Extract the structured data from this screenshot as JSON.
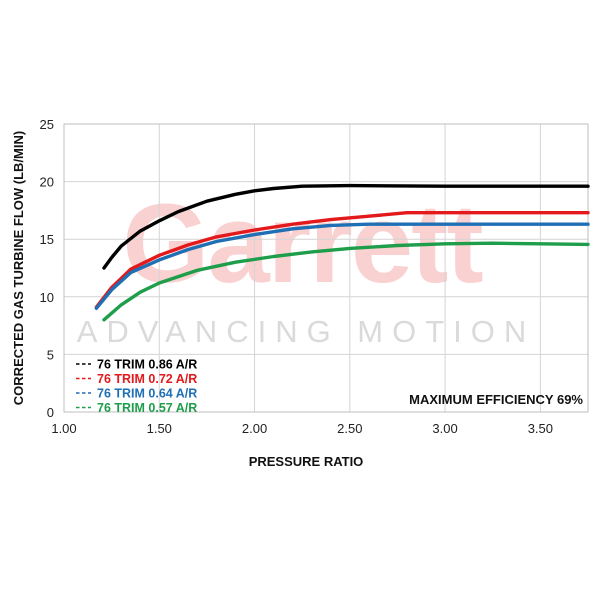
{
  "watermark": {
    "logo_text": "Garrett",
    "tagline": "ADVANCING MOTION"
  },
  "annotation": "MAXIMUM EFFICIENCY 69%",
  "chart_data": {
    "type": "line",
    "title": "",
    "xlabel": "PRESSURE RATIO",
    "ylabel": "CORRECTED GAS TURBINE FLOW (LB/MIN)",
    "xlim": [
      1.0,
      3.75
    ],
    "ylim": [
      0,
      25
    ],
    "x_ticks": [
      "1.00",
      "1.50",
      "2.00",
      "2.50",
      "3.00",
      "3.50"
    ],
    "x_tick_values": [
      1.0,
      1.5,
      2.0,
      2.5,
      3.0,
      3.5
    ],
    "y_ticks": [
      "0",
      "5",
      "10",
      "15",
      "20",
      "25"
    ],
    "y_tick_values": [
      0,
      5,
      10,
      15,
      20,
      25
    ],
    "grid": true,
    "legend_position": "bottom-left",
    "series": [
      {
        "name": "76 TRIM 0.86 A/R",
        "color": "#000000",
        "points": [
          [
            1.21,
            12.5
          ],
          [
            1.25,
            13.4
          ],
          [
            1.3,
            14.4
          ],
          [
            1.4,
            15.7
          ],
          [
            1.5,
            16.6
          ],
          [
            1.6,
            17.4
          ],
          [
            1.75,
            18.3
          ],
          [
            1.9,
            18.9
          ],
          [
            2.0,
            19.2
          ],
          [
            2.1,
            19.4
          ],
          [
            2.25,
            19.6
          ],
          [
            2.5,
            19.65
          ],
          [
            3.0,
            19.6
          ],
          [
            3.5,
            19.6
          ],
          [
            3.75,
            19.6
          ]
        ]
      },
      {
        "name": "76 TRIM 0.72 A/R",
        "color": "#e3191c",
        "points": [
          [
            1.17,
            9.1
          ],
          [
            1.25,
            10.8
          ],
          [
            1.35,
            12.4
          ],
          [
            1.5,
            13.6
          ],
          [
            1.65,
            14.5
          ],
          [
            1.8,
            15.2
          ],
          [
            2.0,
            15.8
          ],
          [
            2.2,
            16.3
          ],
          [
            2.4,
            16.7
          ],
          [
            2.6,
            17.0
          ],
          [
            2.8,
            17.3
          ],
          [
            3.0,
            17.3
          ],
          [
            3.5,
            17.3
          ],
          [
            3.75,
            17.3
          ]
        ]
      },
      {
        "name": "76 TRIM 0.64 A/R",
        "color": "#1f6fb5",
        "points": [
          [
            1.17,
            9.0
          ],
          [
            1.25,
            10.6
          ],
          [
            1.35,
            12.1
          ],
          [
            1.5,
            13.2
          ],
          [
            1.65,
            14.1
          ],
          [
            1.8,
            14.8
          ],
          [
            2.0,
            15.4
          ],
          [
            2.2,
            15.9
          ],
          [
            2.4,
            16.2
          ],
          [
            2.6,
            16.3
          ],
          [
            2.8,
            16.3
          ],
          [
            3.0,
            16.3
          ],
          [
            3.5,
            16.3
          ],
          [
            3.75,
            16.3
          ]
        ]
      },
      {
        "name": "76 TRIM 0.57 A/R",
        "color": "#1e9e4a",
        "points": [
          [
            1.21,
            8.0
          ],
          [
            1.3,
            9.3
          ],
          [
            1.4,
            10.4
          ],
          [
            1.5,
            11.2
          ],
          [
            1.7,
            12.3
          ],
          [
            1.9,
            13.0
          ],
          [
            2.1,
            13.5
          ],
          [
            2.3,
            13.9
          ],
          [
            2.5,
            14.2
          ],
          [
            2.75,
            14.45
          ],
          [
            3.0,
            14.6
          ],
          [
            3.25,
            14.65
          ],
          [
            3.5,
            14.6
          ],
          [
            3.75,
            14.55
          ]
        ]
      }
    ]
  }
}
